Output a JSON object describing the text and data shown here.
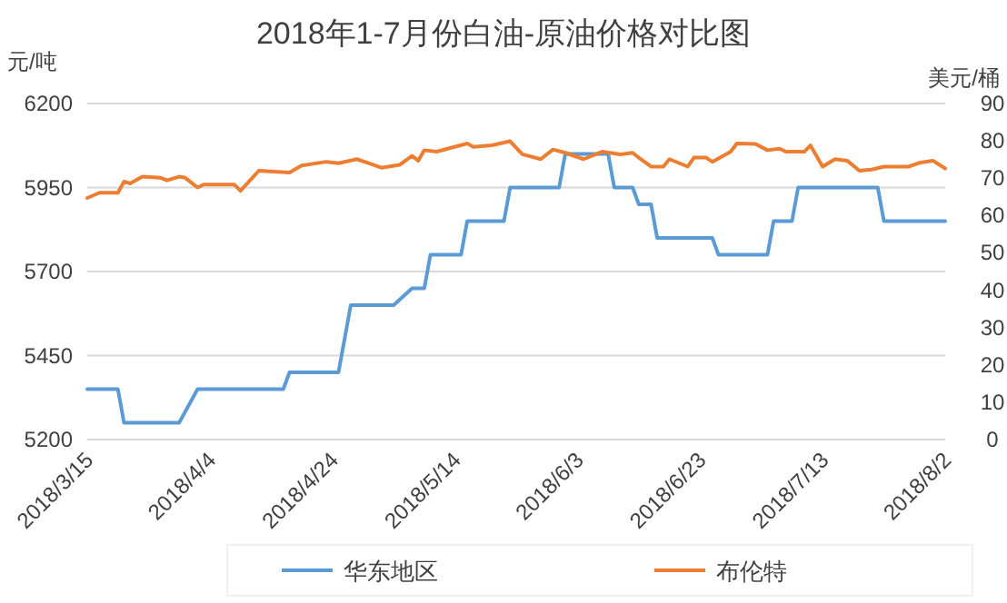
{
  "chart_data": {
    "type": "line",
    "title": "2018年1-7月份白油-原油价格对比图",
    "ylabel": "元/吨",
    "y2label": "美元/桶",
    "xlim": [
      "2018-03-15",
      "2018-08-02"
    ],
    "xticks": [
      {
        "value": "2018-03-15",
        "label": "2018/3/15"
      },
      {
        "value": "2018-04-04",
        "label": "2018/4/4"
      },
      {
        "value": "2018-04-24",
        "label": "2018/4/24"
      },
      {
        "value": "2018-05-14",
        "label": "2018/5/14"
      },
      {
        "value": "2018-06-03",
        "label": "2018/6/3"
      },
      {
        "value": "2018-06-23",
        "label": "2018/6/23"
      },
      {
        "value": "2018-07-13",
        "label": "2018/7/13"
      },
      {
        "value": "2018-08-02",
        "label": "2018/8/2"
      }
    ],
    "ylim": [
      5200,
      6200
    ],
    "yticks": [
      5200,
      5450,
      5700,
      5950,
      6200
    ],
    "y2lim": [
      0,
      90
    ],
    "y2ticks": [
      0,
      10,
      20,
      30,
      40,
      50,
      60,
      70,
      80,
      90
    ],
    "grid": "y",
    "legend": "bottom",
    "series": [
      {
        "name": "华东地区",
        "color": "#5b9bd5",
        "x": [
          "2018-03-15",
          "2018-03-20",
          "2018-03-21",
          "2018-03-30",
          "2018-04-02",
          "2018-04-16",
          "2018-04-17",
          "2018-04-25",
          "2018-04-27",
          "2018-05-04",
          "2018-05-07",
          "2018-05-09",
          "2018-05-10",
          "2018-05-15",
          "2018-05-16",
          "2018-05-22",
          "2018-05-23",
          "2018-05-31",
          "2018-06-01",
          "2018-06-08",
          "2018-06-09",
          "2018-06-12",
          "2018-06-13",
          "2018-06-15",
          "2018-06-16",
          "2018-06-25",
          "2018-06-26",
          "2018-07-04",
          "2018-07-05",
          "2018-07-08",
          "2018-07-09",
          "2018-07-22",
          "2018-07-23",
          "2018-08-02"
        ],
        "values": [
          5350,
          5350,
          5250,
          5250,
          5350,
          5350,
          5400,
          5400,
          5600,
          5600,
          5650,
          5650,
          5750,
          5750,
          5850,
          5850,
          5950,
          5950,
          6050,
          6050,
          5950,
          5950,
          5900,
          5900,
          5800,
          5800,
          5750,
          5750,
          5850,
          5850,
          5950,
          5950,
          5850,
          5850
        ]
      },
      {
        "name": "布伦特",
        "color": "#ed7d31",
        "axis": "y2",
        "x": [
          "2018-03-15",
          "2018-03-17",
          "2018-03-20",
          "2018-03-21",
          "2018-03-22",
          "2018-03-24",
          "2018-03-27",
          "2018-03-28",
          "2018-03-30",
          "2018-03-31",
          "2018-04-02",
          "2018-04-03",
          "2018-04-08",
          "2018-04-09",
          "2018-04-12",
          "2018-04-17",
          "2018-04-19",
          "2018-04-23",
          "2018-04-25",
          "2018-04-28",
          "2018-04-30",
          "2018-05-02",
          "2018-05-05",
          "2018-05-07",
          "2018-05-08",
          "2018-05-09",
          "2018-05-11",
          "2018-05-16",
          "2018-05-17",
          "2018-05-20",
          "2018-05-23",
          "2018-05-25",
          "2018-05-28",
          "2018-05-30",
          "2018-06-01",
          "2018-06-04",
          "2018-06-07",
          "2018-06-10",
          "2018-06-12",
          "2018-06-13",
          "2018-06-15",
          "2018-06-17",
          "2018-06-18",
          "2018-06-21",
          "2018-06-22",
          "2018-06-24",
          "2018-06-25",
          "2018-06-28",
          "2018-06-29",
          "2018-07-02",
          "2018-07-04",
          "2018-07-06",
          "2018-07-07",
          "2018-07-10",
          "2018-07-11",
          "2018-07-13",
          "2018-07-15",
          "2018-07-17",
          "2018-07-19",
          "2018-07-21",
          "2018-07-23",
          "2018-07-27",
          "2018-07-29",
          "2018-07-31",
          "2018-08-02"
        ],
        "values": [
          64.7,
          66.1,
          66.1,
          69.1,
          68.6,
          70.4,
          70.1,
          69.4,
          70.4,
          70.1,
          67.5,
          68.3,
          68.3,
          66.6,
          72.0,
          71.5,
          73.4,
          74.4,
          74.0,
          75.1,
          74.0,
          72.8,
          73.6,
          76.0,
          74.7,
          77.5,
          77.1,
          79.3,
          78.4,
          78.8,
          79.9,
          76.4,
          75.1,
          77.7,
          76.8,
          75.1,
          77.1,
          76.4,
          76.8,
          75.5,
          73.1,
          73.1,
          75.1,
          73.1,
          75.5,
          75.5,
          74.4,
          77.1,
          79.3,
          79.2,
          77.5,
          77.9,
          77.1,
          77.1,
          78.8,
          73.1,
          75.1,
          74.7,
          72.0,
          72.3,
          73.1,
          73.1,
          74.2,
          74.7,
          72.6
        ]
      }
    ]
  }
}
